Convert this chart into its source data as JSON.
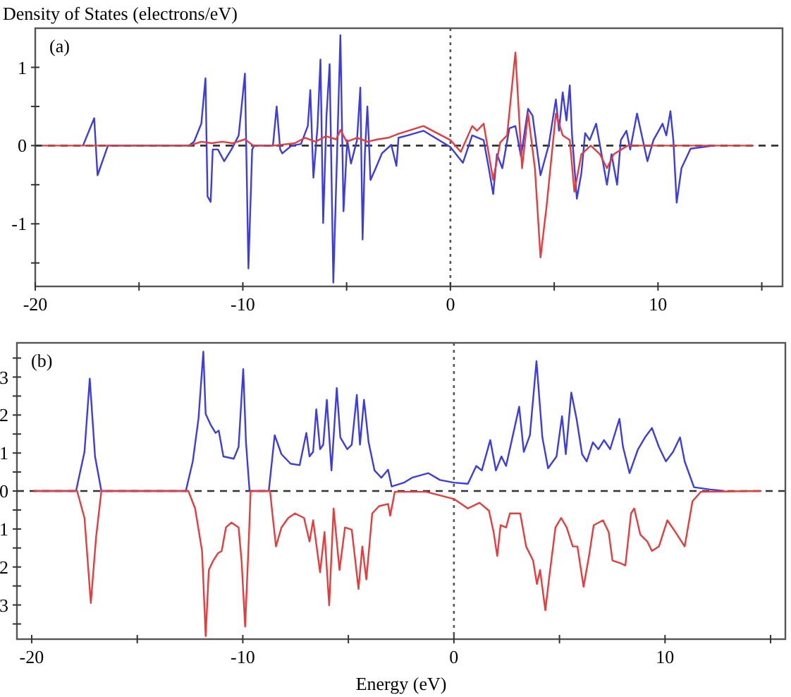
{
  "chart_data": [
    {
      "type": "line",
      "ylabel": "Density of States (electrons/eV)",
      "annotations": [
        "(a)"
      ],
      "xlim": [
        -20,
        16
      ],
      "ylim": [
        -1.8,
        1.5
      ],
      "xticks": [
        -20,
        {
          "value": -15,
          "label": null
        },
        -10,
        {
          "value": -5,
          "label": null
        },
        0,
        {
          "value": 5,
          "label": null
        },
        10,
        {
          "value": 15,
          "label": null
        }
      ],
      "yticks": [
        {
          "value": -1.5,
          "label": null
        },
        -1,
        {
          "value": -0.5,
          "label": null
        },
        0,
        {
          "value": 0.5,
          "label": null
        },
        1
      ],
      "ref_lines": [
        {
          "axis": "y",
          "value": 0,
          "line_style": "dashed",
          "color": "#333333"
        },
        {
          "axis": "x",
          "value": 0,
          "line_style": "dotted",
          "color": "#555555"
        }
      ],
      "series": [
        {
          "color": "#3c3ce6",
          "x": [
            -17.7,
            -17.16,
            -17.0,
            -16.5,
            -12.6,
            -12.35,
            -12.0,
            -11.8,
            -11.7,
            -11.55,
            -11.45,
            -11.2,
            -10.9,
            -10.55,
            -10.2,
            -9.9,
            -9.73,
            -9.55,
            -9.45,
            -8.55,
            -8.37,
            -8.2,
            -8.1,
            -7.65,
            -7.2,
            -6.87,
            -6.75,
            -6.6,
            -6.4,
            -6.26,
            -6.13,
            -5.97,
            -5.82,
            -5.64,
            -5.46,
            -5.3,
            -5.15,
            -4.97,
            -4.79,
            -4.5,
            -4.34,
            -4.23,
            -4.12,
            -4.0,
            -3.85,
            -3.6,
            -3.3,
            -2.85,
            -2.6,
            -2.5,
            -2.05,
            -1.3,
            0,
            0.6,
            1.05,
            1.6,
            1.83,
            2.06,
            2.24,
            2.5,
            2.84,
            3.13,
            3.4,
            3.74,
            3.96,
            4.34,
            4.74,
            5.08,
            5.23,
            5.41,
            5.59,
            5.75,
            5.86,
            6.09,
            6.31,
            6.49,
            6.71,
            7.02,
            7.32,
            7.54,
            7.76,
            8.03,
            8.21,
            8.48,
            8.66,
            8.99,
            9.22,
            9.49,
            9.78,
            10.22,
            10.4,
            10.6,
            10.74,
            10.9,
            11.13,
            11.57,
            12.7
          ],
          "values": [
            0,
            0.35,
            -0.38,
            0,
            0,
            0.05,
            0.28,
            0.86,
            -0.65,
            -0.72,
            -0.05,
            -0.05,
            -0.2,
            -0.05,
            0.13,
            0.92,
            -1.57,
            -0.05,
            0,
            0,
            0.5,
            -0.05,
            -0.1,
            0,
            0.02,
            0.25,
            0.71,
            -0.41,
            0.25,
            1.1,
            -0.99,
            0.38,
            1.04,
            -1.75,
            -0.1,
            1.41,
            -0.84,
            0.07,
            -0.23,
            0.07,
            0.74,
            -1.2,
            -0.1,
            0.5,
            -0.44,
            -0.29,
            -0.1,
            0.01,
            -0.26,
            0.1,
            0.13,
            0.19,
            -0.02,
            -0.22,
            0.13,
            0.07,
            -0.26,
            -0.62,
            -0.11,
            -0.29,
            0.22,
            0.25,
            -0.14,
            0.47,
            0.38,
            -0.38,
            0.01,
            0.59,
            0.19,
            0.68,
            0.32,
            0.77,
            0.13,
            -0.68,
            -0.35,
            0.16,
            0.07,
            0.28,
            -0.17,
            -0.5,
            -0.11,
            -0.5,
            0.07,
            0.19,
            -0.05,
            0.41,
            0.13,
            -0.2,
            0.07,
            0.28,
            0.13,
            0.44,
            0.07,
            -0.73,
            -0.29,
            -0.04,
            0
          ]
        },
        {
          "color": "#e83c3c",
          "x": [
            -19.7,
            -12.6,
            -12.0,
            -11.5,
            -11.0,
            -10.5,
            -9.9,
            -9.5,
            -8.5,
            -7.5,
            -7.0,
            -6.5,
            -6.0,
            -5.5,
            -5.3,
            -5.0,
            -4.5,
            -4.0,
            -3.5,
            -3.0,
            -2.5,
            -1.3,
            0,
            0.5,
            1.05,
            1.28,
            1.6,
            2.06,
            2.4,
            2.73,
            3.13,
            3.45,
            3.74,
            4.07,
            4.34,
            4.63,
            5.08,
            5.41,
            5.75,
            5.97,
            6.31,
            6.76,
            7.2,
            7.54,
            7.87,
            8.54,
            14.6
          ],
          "values": [
            0,
            0,
            0.05,
            0.03,
            0.05,
            0.03,
            0.08,
            0,
            0,
            0.03,
            0.1,
            0.05,
            0.12,
            0.08,
            0.2,
            0.05,
            0.1,
            0.05,
            0.08,
            0.1,
            0.15,
            0.25,
            0.07,
            -0.08,
            0.25,
            0.19,
            0.28,
            -0.44,
            0.04,
            0.13,
            1.19,
            -0.29,
            0.41,
            -0.29,
            -1.43,
            -0.78,
            0.41,
            0.13,
            0.07,
            -0.59,
            -0.11,
            0,
            -0.11,
            -0.29,
            -0.11,
            0,
            0
          ]
        }
      ]
    },
    {
      "type": "line",
      "xlabel": "Energy (eV)",
      "annotations": [
        "(b)"
      ],
      "xlim": [
        -20.7,
        15.7
      ],
      "ylim": [
        -3.9,
        3.9
      ],
      "xticks": [
        -20,
        {
          "value": -15,
          "label": null
        },
        -10,
        {
          "value": -5,
          "label": null
        },
        0,
        {
          "value": 5,
          "label": null
        },
        10,
        {
          "value": 15,
          "label": null
        }
      ],
      "yticks": [
        {
          "value": -3.5,
          "label": null
        },
        {
          "value": -3,
          "label": "3"
        },
        {
          "value": -2.5,
          "label": null
        },
        {
          "value": -2,
          "label": "2"
        },
        {
          "value": -1.5,
          "label": null
        },
        {
          "value": -1,
          "label": "1"
        },
        {
          "value": -0.5,
          "label": null
        },
        0,
        {
          "value": 0.5,
          "label": null
        },
        1,
        {
          "value": 1.5,
          "label": null
        },
        2,
        {
          "value": 2.5,
          "label": null
        },
        3,
        {
          "value": 3.5,
          "label": null
        }
      ],
      "ref_lines": [
        {
          "axis": "y",
          "value": 0,
          "line_style": "dashed",
          "color": "#333333"
        },
        {
          "axis": "x",
          "value": 0,
          "line_style": "dotted",
          "color": "#555555"
        }
      ],
      "series": [
        {
          "color": "#3c3ce6",
          "x": [
            -19.9,
            -17.9,
            -17.5,
            -17.25,
            -17.0,
            -16.7,
            -12.7,
            -12.37,
            -12.1,
            -11.87,
            -11.76,
            -11.5,
            -11.29,
            -11.14,
            -10.92,
            -10.43,
            -10.2,
            -9.98,
            -9.85,
            -9.68,
            -8.77,
            -8.49,
            -8.17,
            -7.74,
            -7.31,
            -6.99,
            -6.84,
            -6.67,
            -6.52,
            -6.34,
            -6.19,
            -6.02,
            -5.8,
            -5.55,
            -5.38,
            -5.05,
            -4.84,
            -4.6,
            -4.45,
            -4.26,
            -4.04,
            -3.76,
            -3.44,
            -3.12,
            -2.95,
            -2.37,
            -1.99,
            -1.21,
            -0.66,
            0,
            0.66,
            1.06,
            1.32,
            1.72,
            1.99,
            2.25,
            2.47,
            2.87,
            3.09,
            3.31,
            3.6,
            3.91,
            4.19,
            4.46,
            4.86,
            5.12,
            5.3,
            5.56,
            5.81,
            6.07,
            6.29,
            6.58,
            6.84,
            7.11,
            7.4,
            7.84,
            8.01,
            8.32,
            8.72,
            9.05,
            9.38,
            9.71,
            10.04,
            10.38,
            10.71,
            10.93,
            11.37,
            12.14,
            12.8
          ],
          "values": [
            0,
            0,
            1.03,
            2.96,
            0.91,
            0,
            0,
            0.78,
            1.9,
            3.67,
            2.03,
            1.72,
            1.53,
            1.59,
            0.91,
            0.85,
            1.16,
            3.21,
            1.28,
            0,
            0,
            1.47,
            0.97,
            0.72,
            0.68,
            1.53,
            0.91,
            1.03,
            2.15,
            1.1,
            1.22,
            2.4,
            0.54,
            2.71,
            1.41,
            1.1,
            1.22,
            2.53,
            1.22,
            2.4,
            1.28,
            0.54,
            0.35,
            0.56,
            0.12,
            0.22,
            0.35,
            0.47,
            0.29,
            0.22,
            0.19,
            0.66,
            0.54,
            1.34,
            0.54,
            0.91,
            0.66,
            1.66,
            2.22,
            1.03,
            1.47,
            3.42,
            1.41,
            0.6,
            0.91,
            1.97,
            0.97,
            2.59,
            1.9,
            0.97,
            0.78,
            1.28,
            1.1,
            1.34,
            1.1,
            1.9,
            1.16,
            0.47,
            1.1,
            1.41,
            1.66,
            1.16,
            0.78,
            1.03,
            1.41,
            0.78,
            0.1,
            0.04,
            0
          ]
        },
        {
          "color": "#e83c3c",
          "x": [
            -19.9,
            -17.85,
            -17.5,
            -17.2,
            -16.95,
            -16.7,
            -12.58,
            -12.26,
            -11.93,
            -11.76,
            -11.61,
            -11.4,
            -11.18,
            -11.0,
            -10.8,
            -10.54,
            -10.2,
            -10.06,
            -9.89,
            -9.72,
            -9.63,
            -8.71,
            -8.6,
            -8.43,
            -8.17,
            -7.85,
            -7.53,
            -7.1,
            -6.84,
            -6.67,
            -6.34,
            -6.13,
            -5.91,
            -5.7,
            -5.42,
            -5.16,
            -4.84,
            -4.52,
            -4.34,
            -4.15,
            -3.87,
            -3.55,
            -3.12,
            -3.02,
            -2.8,
            -1.32,
            0,
            0.66,
            1.21,
            1.66,
            1.88,
            2.05,
            2.21,
            2.47,
            2.65,
            3.14,
            3.42,
            3.75,
            3.93,
            4.08,
            4.33,
            4.53,
            4.81,
            5.08,
            5.34,
            5.63,
            5.85,
            6.14,
            6.4,
            6.62,
            7.06,
            7.33,
            7.51,
            7.84,
            8.12,
            8.39,
            8.54,
            8.83,
            9.16,
            9.38,
            9.71,
            10.11,
            10.49,
            10.93,
            11.3,
            11.7,
            14.57
          ],
          "values": [
            0,
            0,
            -0.71,
            -2.95,
            -1.21,
            0,
            0,
            -0.46,
            -1.58,
            -3.82,
            -2.08,
            -1.83,
            -1.64,
            -1.58,
            -0.96,
            -0.83,
            -0.96,
            -1.83,
            -3.57,
            -1.33,
            0,
            0,
            -0.59,
            -1.46,
            -0.96,
            -0.71,
            -0.59,
            -0.71,
            -1.33,
            -0.77,
            -2.14,
            -1.08,
            -3.01,
            -0.46,
            -2.08,
            -0.96,
            -1.02,
            -2.58,
            -1.46,
            -2.33,
            -0.59,
            -0.4,
            -0.34,
            -0.65,
            -0.02,
            -0.02,
            -0.21,
            -0.46,
            -0.31,
            -0.52,
            -1.08,
            -1.71,
            -0.9,
            -0.96,
            -0.59,
            -0.59,
            -1.46,
            -1.83,
            -2.45,
            -2.08,
            -3.14,
            -2.2,
            -0.96,
            -0.71,
            -0.96,
            -1.46,
            -1.46,
            -2.52,
            -1.71,
            -0.9,
            -0.77,
            -1.08,
            -1.83,
            -1.89,
            -1.96,
            -0.59,
            -0.46,
            -1.15,
            -1.33,
            -1.58,
            -1.46,
            -0.77,
            -1.08,
            -1.46,
            -0.27,
            -0.02,
            0
          ]
        }
      ]
    }
  ]
}
